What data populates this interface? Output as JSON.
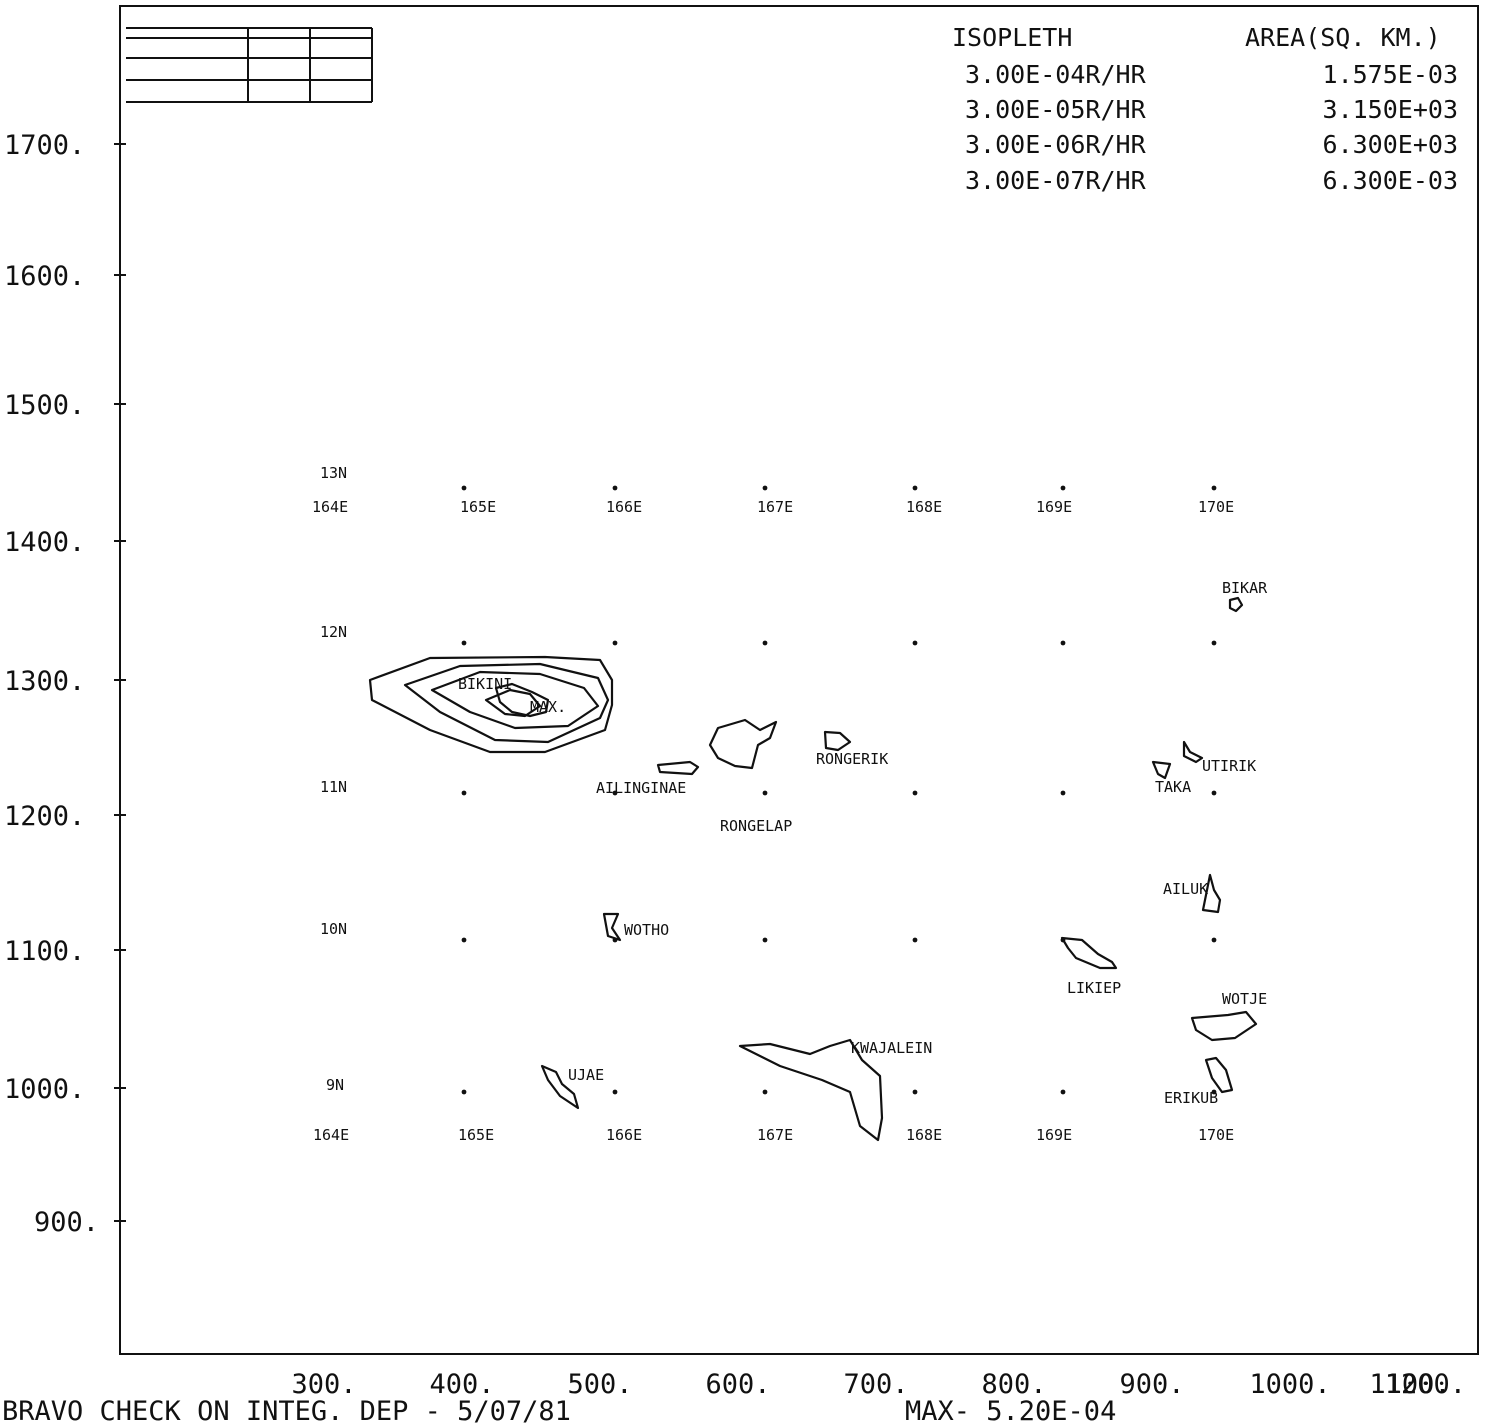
{
  "legend": {
    "header_isopleth": "ISOPLETH",
    "header_area": "AREA(SQ. KM.)",
    "rows": [
      {
        "isopleth": "3.00E-04R/HR",
        "area": "1.575E-03"
      },
      {
        "isopleth": "3.00E-05R/HR",
        "area": "3.150E+03"
      },
      {
        "isopleth": "3.00E-06R/HR",
        "area": "6.300E+03"
      },
      {
        "isopleth": "3.00E-07R/HR",
        "area": "6.300E-03"
      }
    ]
  },
  "axes": {
    "y_ticks": [
      "1700.",
      "1600.",
      "1500.",
      "1400.",
      "1300.",
      "1200.",
      "1100.",
      "1000.",
      "900."
    ],
    "x_ticks": [
      "300.",
      "400.",
      "500.",
      "600.",
      "700.",
      "800.",
      "900.",
      "1000.",
      "1100.",
      "1200."
    ]
  },
  "footer": {
    "left": "BRAVO CHECK ON INTEG. DEP - 5/07/81",
    "right": "MAX- 5.20E-04"
  },
  "grid": {
    "lon_labels": [
      "164E",
      "165E",
      "166E",
      "167E",
      "168E",
      "169E",
      "170E"
    ],
    "lat_labels": [
      "13N",
      "12N",
      "11N",
      "10N",
      "9N"
    ]
  },
  "places": {
    "bikini": "BIKINI",
    "max": "MAX.",
    "ailinginae": "AILINGINAE",
    "rongelap": "RONGELAP",
    "rongerik": "RONGERIK",
    "bikar": "BIKAR",
    "utirik": "UTIRIK",
    "taka": "TAKA",
    "ailuk": "AILUK",
    "wotho": "WOTHO",
    "likiep": "LIKIEP",
    "wotje": "WOTJE",
    "kwajalein": "KWAJALEIN",
    "ujae": "UJAE",
    "erikub": "ERIKUB"
  }
}
